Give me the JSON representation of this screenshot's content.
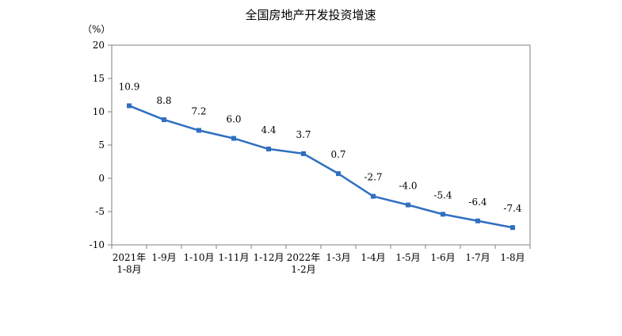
{
  "chart_data": {
    "type": "line",
    "title": "全国房地产开发投资增速",
    "unit": "（%）",
    "categories": [
      [
        "2021年",
        "1-8月"
      ],
      [
        "1-9月"
      ],
      [
        "1-10月"
      ],
      [
        "1-11月"
      ],
      [
        "1-12月"
      ],
      [
        "2022年",
        "1-2月"
      ],
      [
        "1-3月"
      ],
      [
        "1-4月"
      ],
      [
        "1-5月"
      ],
      [
        "1-6月"
      ],
      [
        "1-7月"
      ],
      [
        "1-8月"
      ]
    ],
    "values": [
      10.9,
      8.8,
      7.2,
      6.0,
      4.4,
      3.7,
      0.7,
      -2.7,
      -4.0,
      -5.4,
      -6.4,
      -7.4
    ],
    "data_labels": [
      "10.9",
      "8.8",
      "7.2",
      "6.0",
      "4.4",
      "3.7",
      "0.7",
      "-2.7",
      "-4.0",
      "-5.4",
      "-6.4",
      "-7.4"
    ],
    "yticks": [
      20,
      15,
      10,
      5,
      0,
      -5,
      -10
    ],
    "ylim": [
      -10,
      20
    ],
    "grid": false,
    "colors": {
      "line": "#2f6fc0",
      "axis": "#808080"
    }
  }
}
